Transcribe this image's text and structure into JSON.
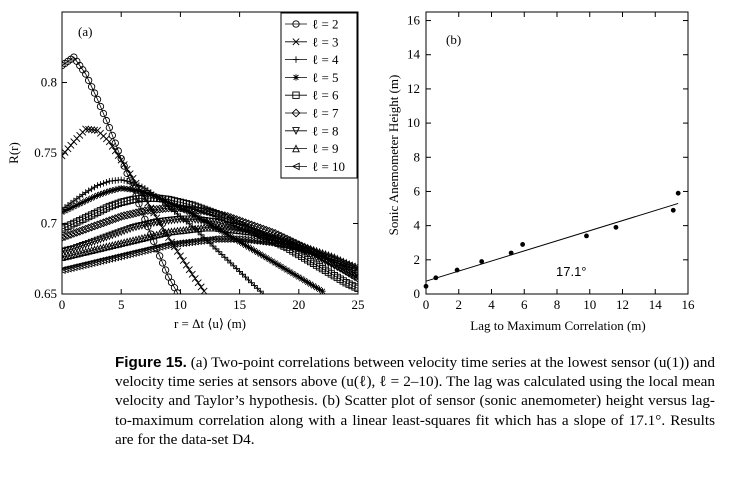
{
  "figure": {
    "caption_label": "Figure 15.",
    "caption_text": "(a) Two-point correlations between velocity time series at the lowest sensor (u(1)) and velocity time series at sensors above (u(ℓ), ℓ = 2–10). The lag was calculated using the local mean velocity and Taylor’s hypothesis. (b) Scatter plot of sensor (sonic anemometer) height versus lag-to-maximum correlation along with a linear least-squares fit which has a slope of 17.1°. Results are for the data-set D4."
  },
  "chart_data": [
    {
      "type": "line",
      "panel_label": "(a)",
      "xlabel": "r = Δt ⟨u⟩ (m)",
      "ylabel": "R(r)",
      "xlim": [
        0,
        25
      ],
      "ylim": [
        0.65,
        0.85
      ],
      "xticks": [
        "0",
        "5",
        "10",
        "15",
        "20",
        "25"
      ],
      "yticks": [
        "0.65",
        "0.7",
        "0.75",
        "0.8"
      ],
      "legend_position": "top-right",
      "x": [
        0,
        1,
        2,
        3,
        4,
        5,
        6,
        7,
        8,
        9,
        10,
        11,
        12,
        13,
        14,
        15,
        16,
        17,
        18,
        19,
        20,
        21,
        22,
        23,
        24,
        25
      ],
      "series": [
        {
          "name": "ℓ = 2",
          "marker": "circle",
          "values": [
            0.812,
            0.818,
            0.806,
            0.788,
            0.768,
            0.746,
            0.725,
            0.703,
            0.682,
            0.662,
            0.647,
            null,
            null,
            null,
            null,
            null,
            null,
            null,
            null,
            null,
            null,
            null,
            null,
            null,
            null,
            null
          ]
        },
        {
          "name": "ℓ = 3",
          "marker": "x",
          "values": [
            0.748,
            0.758,
            0.767,
            0.766,
            0.758,
            0.745,
            0.732,
            0.718,
            0.704,
            0.69,
            0.677,
            0.664,
            0.652,
            null,
            null,
            null,
            null,
            null,
            null,
            null,
            null,
            null,
            null,
            null,
            null,
            null
          ]
        },
        {
          "name": "ℓ = 4",
          "marker": "plus",
          "values": [
            0.71,
            0.716,
            0.722,
            0.727,
            0.73,
            0.731,
            0.729,
            0.725,
            0.719,
            0.712,
            0.705,
            0.698,
            0.69,
            0.682,
            0.674,
            0.666,
            0.658,
            0.65,
            null,
            null,
            null,
            null,
            null,
            null,
            null,
            null
          ]
        },
        {
          "name": "ℓ = 5",
          "marker": "star",
          "values": [
            0.708,
            0.712,
            0.716,
            0.72,
            0.723,
            0.725,
            0.724,
            0.722,
            0.719,
            0.715,
            0.711,
            0.707,
            0.702,
            0.697,
            0.692,
            0.687,
            0.682,
            0.677,
            0.672,
            0.667,
            0.662,
            0.657,
            0.652,
            null,
            null,
            null
          ]
        },
        {
          "name": "ℓ = 6",
          "marker": "square",
          "values": [
            0.696,
            0.7,
            0.704,
            0.708,
            0.712,
            0.715,
            0.717,
            0.718,
            0.718,
            0.717,
            0.715,
            0.713,
            0.71,
            0.707,
            0.703,
            0.699,
            0.695,
            0.691,
            0.687,
            0.683,
            0.678,
            0.673,
            0.668,
            0.663,
            0.658,
            0.654
          ]
        },
        {
          "name": "ℓ = 7",
          "marker": "diamond",
          "values": [
            0.69,
            0.693,
            0.696,
            0.699,
            0.702,
            0.705,
            0.707,
            0.709,
            0.71,
            0.711,
            0.711,
            0.71,
            0.709,
            0.707,
            0.705,
            0.702,
            0.699,
            0.696,
            0.693,
            0.689,
            0.685,
            0.681,
            0.676,
            0.671,
            0.666,
            0.661
          ]
        },
        {
          "name": "ℓ = 8",
          "marker": "triangle-down",
          "values": [
            0.68,
            0.682,
            0.685,
            0.688,
            0.691,
            0.694,
            0.697,
            0.699,
            0.701,
            0.702,
            0.703,
            0.703,
            0.702,
            0.701,
            0.699,
            0.697,
            0.694,
            0.691,
            0.688,
            0.685,
            0.682,
            0.678,
            0.674,
            0.67,
            0.666,
            0.662
          ]
        },
        {
          "name": "ℓ = 9",
          "marker": "triangle-up",
          "values": [
            0.676,
            0.678,
            0.68,
            0.682,
            0.684,
            0.686,
            0.688,
            0.69,
            0.692,
            0.694,
            0.695,
            0.696,
            0.697,
            0.697,
            0.696,
            0.695,
            0.694,
            0.692,
            0.69,
            0.688,
            0.685,
            0.682,
            0.679,
            0.676,
            0.672,
            0.668
          ]
        },
        {
          "name": "ℓ = 10",
          "marker": "triangle-left",
          "values": [
            0.667,
            0.669,
            0.671,
            0.673,
            0.675,
            0.677,
            0.679,
            0.681,
            0.683,
            0.685,
            0.686,
            0.687,
            0.688,
            0.689,
            0.689,
            0.689,
            0.688,
            0.687,
            0.686,
            0.684,
            0.682,
            0.68,
            0.677,
            0.674,
            0.671,
            0.668
          ]
        }
      ]
    },
    {
      "type": "scatter",
      "panel_label": "(b)",
      "xlabel": "Lag to Maximum Correlation (m)",
      "ylabel": "Sonic Anemometer Height (m)",
      "xlim": [
        0,
        16
      ],
      "ylim": [
        0,
        16.5
      ],
      "xticks": [
        "0",
        "2",
        "4",
        "6",
        "8",
        "10",
        "12",
        "14",
        "16"
      ],
      "yticks": [
        "0",
        "2",
        "4",
        "6",
        "8",
        "10",
        "12",
        "14",
        "16"
      ],
      "points": [
        {
          "x": 0.0,
          "y": 0.45
        },
        {
          "x": 0.6,
          "y": 0.95
        },
        {
          "x": 1.9,
          "y": 1.4
        },
        {
          "x": 3.4,
          "y": 1.9
        },
        {
          "x": 5.2,
          "y": 2.4
        },
        {
          "x": 5.9,
          "y": 2.9
        },
        {
          "x": 9.8,
          "y": 3.4
        },
        {
          "x": 11.6,
          "y": 3.9
        },
        {
          "x": 15.1,
          "y": 4.9
        },
        {
          "x": 15.4,
          "y": 5.9
        }
      ],
      "fit_line": {
        "x": [
          0,
          15.4
        ],
        "y": [
          0.75,
          5.3
        ]
      },
      "annotation": "17.1°"
    }
  ]
}
